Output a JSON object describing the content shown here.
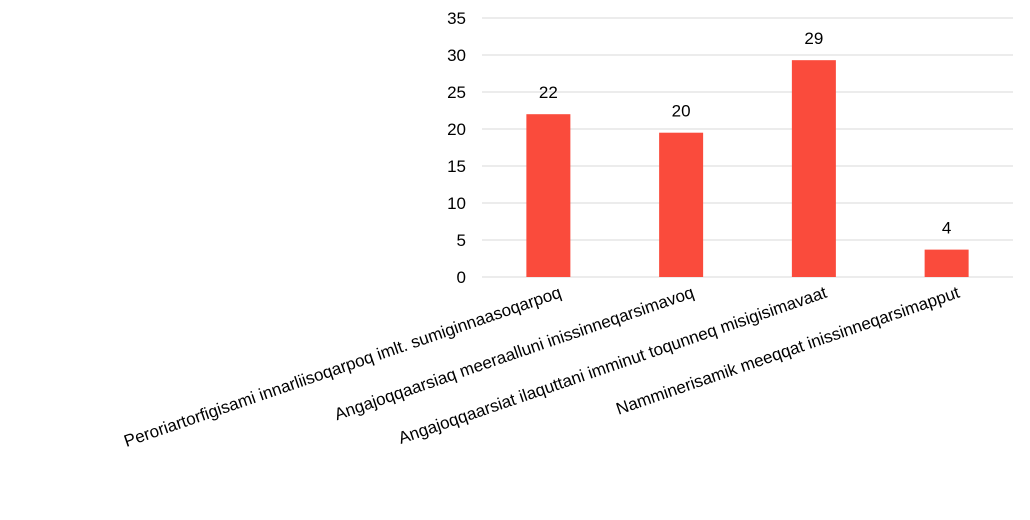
{
  "chart_data": {
    "type": "bar",
    "title": "",
    "xlabel": "",
    "ylabel": "",
    "ylim": [
      0,
      35
    ],
    "yticks": [
      0,
      5,
      10,
      15,
      20,
      25,
      30,
      35
    ],
    "grid": true,
    "legend": "none",
    "categories": [
      "Peroriartorfigisami innarliisoqarpoq imlt. sumiginnaasoqarpoq",
      "Angajoqqaarsiaq meeraalluni inissinneqarsimavoq",
      "Angajoqqaarsiat ilaquttani imminut toqunneq misigisimavaat",
      "Namminerisamik meeqqat inissinneqarsimapput"
    ],
    "values": [
      22,
      19.5,
      29.3,
      3.7
    ],
    "data_labels": [
      "22",
      "20",
      "29",
      "4"
    ],
    "bar_color": "#fa4b3c",
    "grid_color": "#d9d9d9"
  }
}
